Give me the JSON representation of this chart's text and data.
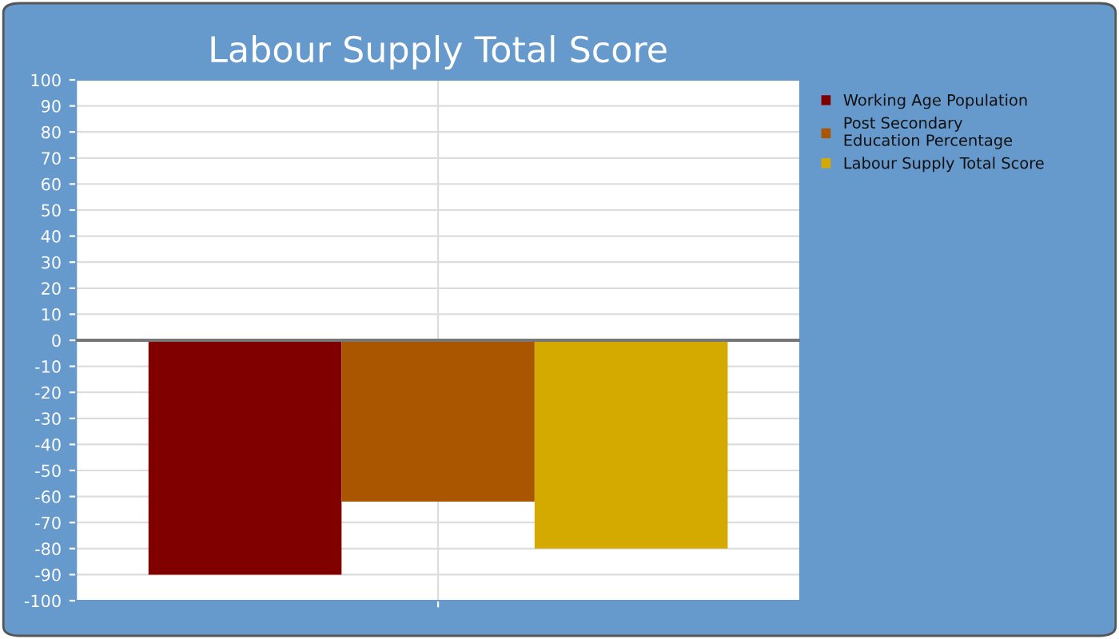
{
  "chart_data": {
    "type": "bar",
    "title": "Labour Supply Total Score",
    "categories": [
      null
    ],
    "series": [
      {
        "name": "Working Age Population",
        "color": "#800000",
        "values": [
          -90
        ]
      },
      {
        "name": "Post Secondary\nEducation Percentage",
        "color": "#aa5500",
        "values": [
          -62
        ]
      },
      {
        "name": "Labour Supply Total Score",
        "color": "#d4aa00",
        "values": [
          -80
        ]
      }
    ],
    "ylim": [
      -100,
      100
    ],
    "yticks": [
      -100,
      -90,
      -80,
      -70,
      -60,
      -50,
      -40,
      -30,
      -20,
      -10,
      0,
      10,
      20,
      30,
      40,
      50,
      60,
      70,
      80,
      90,
      100
    ],
    "grid": true,
    "legend": "right"
  }
}
